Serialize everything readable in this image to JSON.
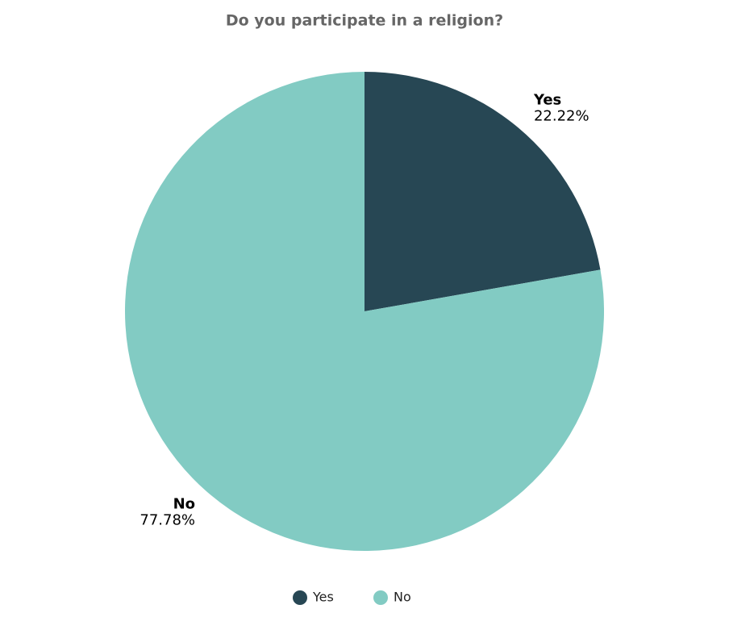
{
  "chart_data": {
    "type": "pie",
    "title": "Do you participate in a religion?",
    "categories": [
      "Yes",
      "No"
    ],
    "values": [
      22.22,
      77.78
    ],
    "value_labels": [
      "22.22%",
      "77.78%"
    ],
    "colors": [
      "#274754",
      "#82cbc3"
    ],
    "legend": "bottom"
  }
}
